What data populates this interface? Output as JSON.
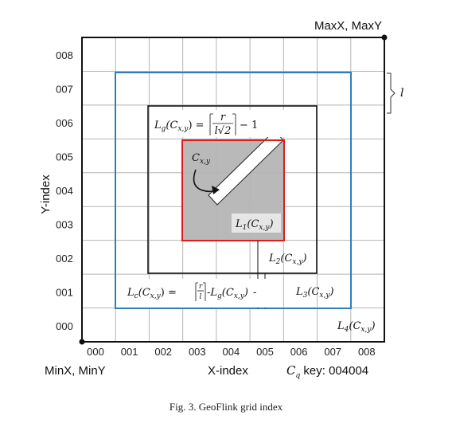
{
  "corners": {
    "max": "MaxX, MaxY",
    "min": "MinX, MinY"
  },
  "axes": {
    "x_title": "X-index",
    "y_title": "Y-index",
    "x_ticks": [
      "000",
      "001",
      "002",
      "003",
      "004",
      "005",
      "006",
      "007",
      "008"
    ],
    "y_ticks": [
      "000",
      "001",
      "002",
      "003",
      "004",
      "005",
      "006",
      "007",
      "008"
    ]
  },
  "key_label": {
    "symbol": "C",
    "sub": "q",
    "text": " key: 004004"
  },
  "l_label": "l",
  "cell_label": {
    "symbol": "C",
    "sub": "x,y"
  },
  "layers": {
    "L1": {
      "symbol": "L",
      "num": "1",
      "arg": "(C",
      "argsub": "x,y",
      "close": ")"
    },
    "L2": {
      "symbol": "L",
      "num": "2",
      "arg": "(C",
      "argsub": "x,y",
      "close": ")"
    },
    "L3": {
      "symbol": "L",
      "num": "3",
      "arg": "(C",
      "argsub": "x,y",
      "close": ")"
    },
    "L4": {
      "symbol": "L",
      "num": "4",
      "arg": "(C",
      "argsub": "x,y",
      "close": ")"
    }
  },
  "formula_g": {
    "lhs": "L",
    "lhs_sub": "g",
    "arg": "(C",
    "argsub": "x,y",
    "rparen": ") =",
    "num": "r",
    "den": "l√2",
    "tail": "− 1"
  },
  "formula_c": {
    "lhs": "L",
    "lhs_sub": "c",
    "arg": "(C",
    "argsub": "x,y",
    "rparen": ") =",
    "num": "r",
    "den": "l",
    "mid": "-L",
    "mid_sub": "g",
    "arg2": "(C",
    "argsub2": "x,y",
    "rparen2": ")",
    "tail": "-"
  },
  "caption": "Fig. 3.   GeoFlink grid index",
  "colors": {
    "grid": "#b5b5b5",
    "outer": "#111111",
    "blue": "#2e7dbf",
    "red": "#e01b1b",
    "shade": "#b9b9b9"
  }
}
